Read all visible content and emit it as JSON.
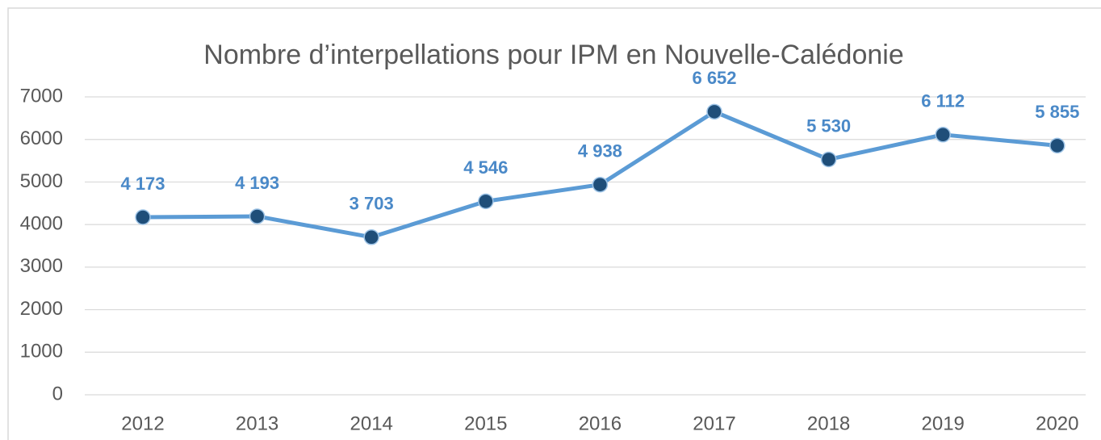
{
  "chart_data": {
    "type": "line",
    "title": "Nombre d’interpellations pour IPM en Nouvelle-Calédonie",
    "categories": [
      "2012",
      "2013",
      "2014",
      "2015",
      "2016",
      "2017",
      "2018",
      "2019",
      "2020"
    ],
    "series": [
      {
        "color": "#5b9bd5",
        "marker_color": "#1f4e79",
        "values": [
          4173,
          4193,
          3703,
          4546,
          4938,
          6652,
          5530,
          6112,
          5855
        ],
        "value_labels": [
          "4 173",
          "4 193",
          "3 703",
          "4 546",
          "4 938",
          "6 652",
          "5 530",
          "6 112",
          "5 855"
        ]
      }
    ],
    "ylim": [
      0,
      7000
    ],
    "yticks": [
      0,
      1000,
      2000,
      3000,
      4000,
      5000,
      6000,
      7000
    ],
    "grid": true
  }
}
